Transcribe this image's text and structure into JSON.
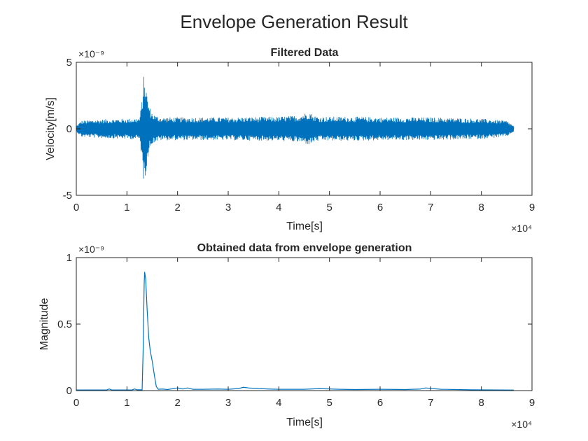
{
  "figure_title": "Envelope Generation Result",
  "chart_data": [
    {
      "type": "line",
      "title": "Filtered Data",
      "xlabel": "Time[s]",
      "ylabel": "Velocity[m/s]",
      "xlim": [
        0,
        90000
      ],
      "ylim": [
        -5e-09,
        5e-09
      ],
      "x_ticks": [
        0,
        1,
        2,
        3,
        4,
        5,
        6,
        7,
        8,
        9
      ],
      "y_ticks": [
        -5,
        0,
        5
      ],
      "x_exponent_label": "×10⁴",
      "y_exponent_label": "×10⁻⁹",
      "grid": false,
      "series": [
        {
          "color": "#0072BD",
          "kind": "oscillating_envelope",
          "x": [
            0,
            1000,
            5000,
            10000,
            12500,
            13000,
            13400,
            13600,
            14000,
            14500,
            15000,
            15600,
            16300,
            17000,
            20000,
            30000,
            40000,
            44000,
            46000,
            47000,
            48000,
            55000,
            60000,
            70000,
            80000,
            85000,
            86400
          ],
          "upper": [
            2e-10,
            6e-10,
            7e-10,
            7.5e-10,
            8e-10,
            2.2e-09,
            4.3e-09,
            3.8e-09,
            2.5e-09,
            1.6e-09,
            1.2e-09,
            1e-09,
            9e-10,
            8.5e-10,
            8.5e-10,
            8.5e-10,
            9e-10,
            1e-09,
            1.3e-09,
            1e-09,
            9e-10,
            9e-10,
            8.5e-10,
            8.5e-10,
            7.5e-10,
            6e-10,
            2e-10
          ],
          "lower": [
            -2e-10,
            -6e-10,
            -7e-10,
            -7.5e-10,
            -8e-10,
            -2.5e-09,
            -4.5e-09,
            -3.8e-09,
            -2.4e-09,
            -1.5e-09,
            -1.1e-09,
            -1e-09,
            -9e-10,
            -8.5e-10,
            -8.5e-10,
            -8.5e-10,
            -9e-10,
            -1e-09,
            -1.2e-09,
            -1e-09,
            -9e-10,
            -9e-10,
            -8.5e-10,
            -8.5e-10,
            -7.5e-10,
            -6e-10,
            -2e-10
          ]
        }
      ]
    },
    {
      "type": "line",
      "title": "Obtained data from envelope generation",
      "xlabel": "Time[s]",
      "ylabel": "Magnitude",
      "xlim": [
        0,
        90000
      ],
      "ylim": [
        0,
        1e-09
      ],
      "x_ticks": [
        0,
        1,
        2,
        3,
        4,
        5,
        6,
        7,
        8,
        9
      ],
      "y_ticks": [
        "0",
        "0.5",
        "1"
      ],
      "x_exponent_label": "×10⁴",
      "y_exponent_label": "×10⁻⁹",
      "grid": false,
      "series": [
        {
          "color": "#0072BD",
          "x": [
            0,
            6000,
            6500,
            7000,
            11000,
            11500,
            12000,
            13000,
            13200,
            13400,
            13500,
            13700,
            14000,
            14300,
            14600,
            15000,
            15400,
            15800,
            16200,
            17000,
            18000,
            20000,
            21000,
            22000,
            23000,
            25000,
            28000,
            30000,
            32000,
            33000,
            34000,
            36000,
            38000,
            40000,
            42000,
            45000,
            48000,
            52000,
            55000,
            60000,
            65000,
            68000,
            69000,
            72000,
            78000,
            84000,
            86400
          ],
          "y": [
            5e-12,
            5e-12,
            1.2e-11,
            5e-12,
            5e-12,
            1.2e-11,
            6e-12,
            6e-12,
            3e-10,
            8e-10,
            8.9e-10,
            8.4e-10,
            6e-10,
            4e-10,
            3e-10,
            2.2e-10,
            1.2e-10,
            3e-11,
            1e-11,
            1.2e-11,
            8e-12,
            2e-11,
            1.2e-11,
            2e-11,
            1e-11,
            1e-11,
            1.2e-11,
            1e-11,
            1.5e-11,
            2.5e-11,
            2e-11,
            1.5e-11,
            1.2e-11,
            1e-11,
            1e-11,
            1e-11,
            1.5e-11,
            1e-11,
            8e-12,
            1e-11,
            8e-12,
            1.2e-11,
            2e-11,
            1e-11,
            6e-12,
            5e-12,
            4e-12
          ]
        }
      ]
    }
  ]
}
